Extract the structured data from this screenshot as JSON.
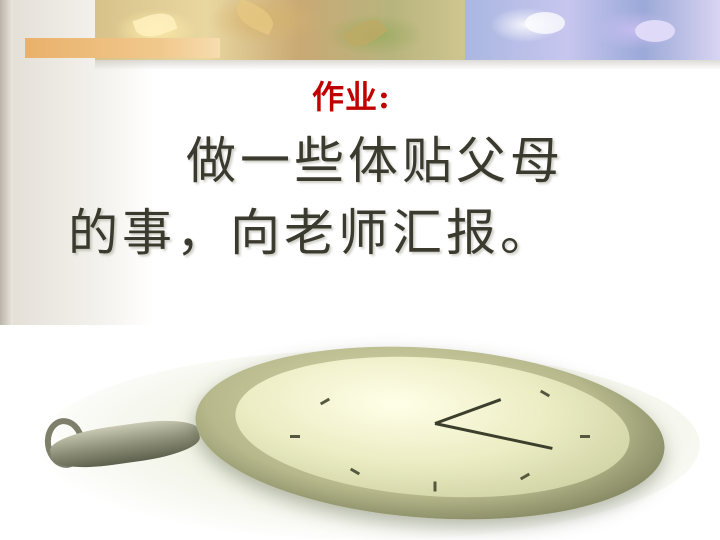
{
  "slide": {
    "title": "作业:",
    "body_line_1": "做一些体贴父母",
    "body_line_2": "的事，向老师汇报。"
  },
  "colors": {
    "title": "#c00000",
    "body": "#3a3a2e",
    "background": "#ffffff"
  },
  "decorations": {
    "banner": "floral-leaf-banner-image",
    "illustration": "pocket-watch-image"
  }
}
